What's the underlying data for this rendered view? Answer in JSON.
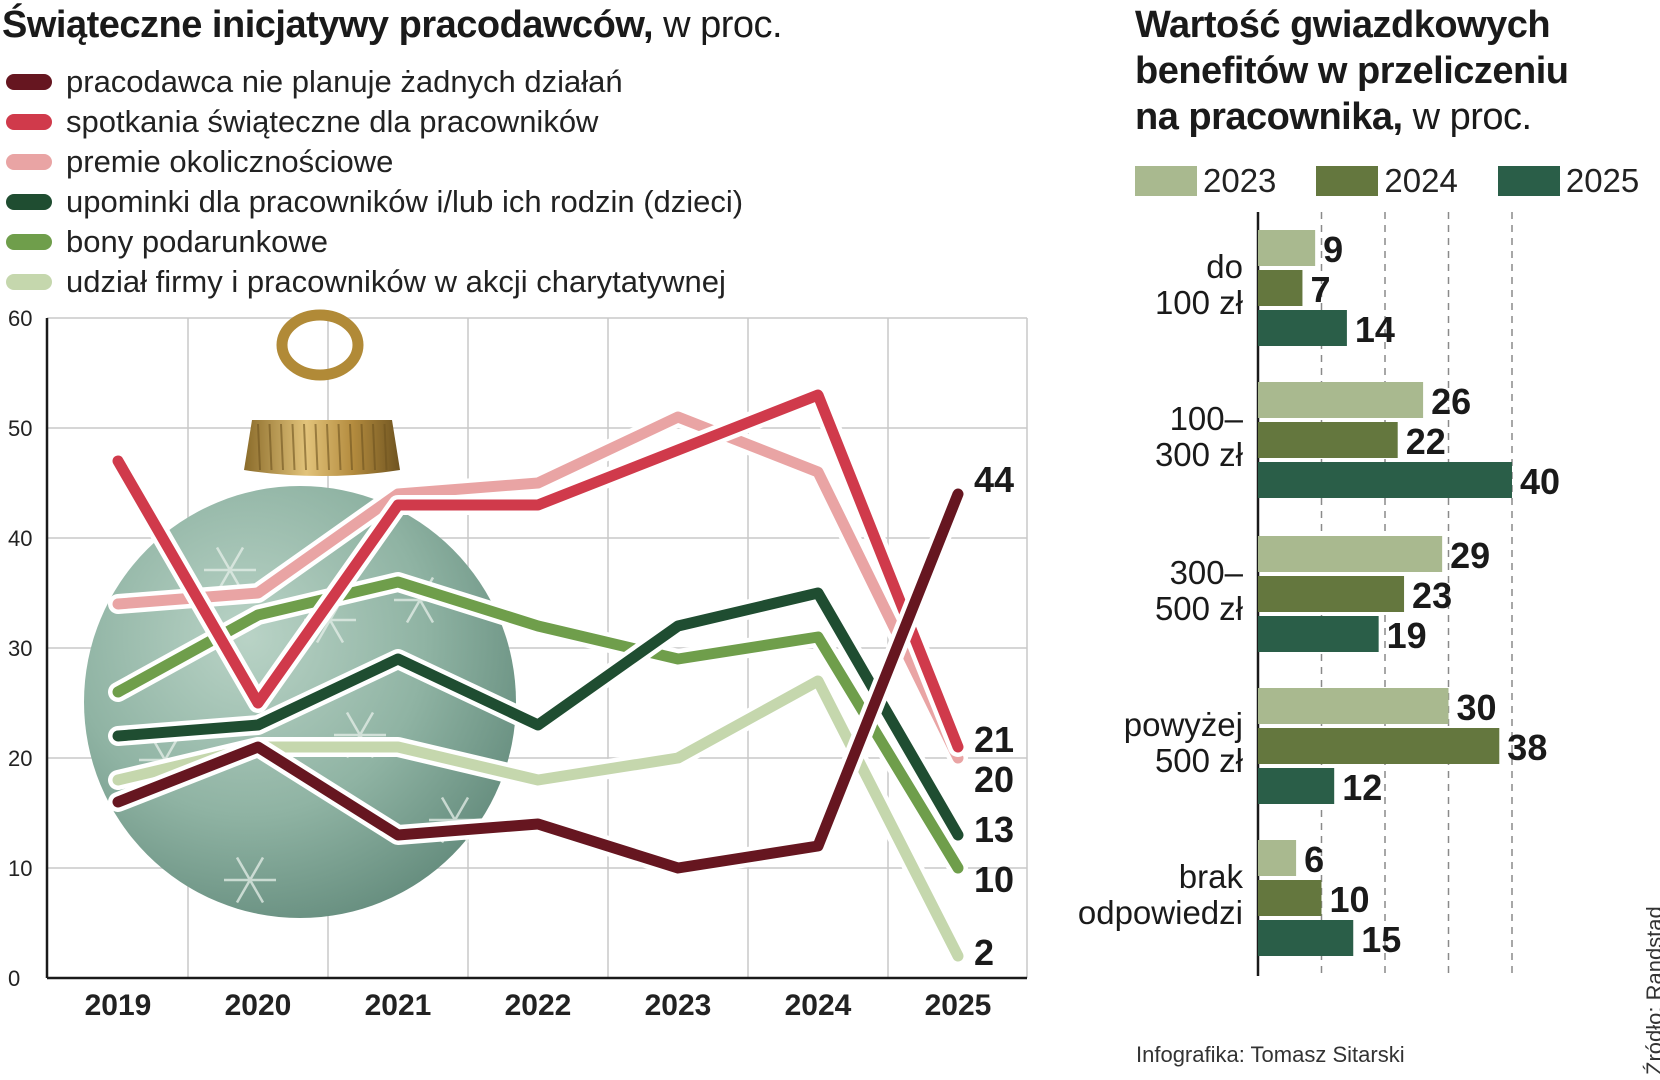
{
  "left_chart": {
    "title_bold": "Świąteczne inicjatywy pracodawców,",
    "title_unit": " w proc.",
    "legend": [
      {
        "label": "pracodawca nie planuje żadnych działań",
        "color": "#661620"
      },
      {
        "label": "spotkania świąteczne dla pracowników",
        "color": "#d03a4b"
      },
      {
        "label": "premie okolicznościowe",
        "color": "#e9a4a4"
      },
      {
        "label": "upominki dla pracowników i/lub ich rodzin (dzieci)",
        "color": "#1f4d31"
      },
      {
        "label": "bony podarunkowe",
        "color": "#6f9e4b"
      },
      {
        "label": "udział firmy i pracowników w akcji charytatywnej",
        "color": "#c5d7ad"
      }
    ]
  },
  "right_chart": {
    "title_bold_lines": [
      "Wartość gwiazdkowych",
      "benefitów w przeliczeniu",
      "na pracownika,"
    ],
    "title_unit": " w proc.",
    "legend": [
      {
        "label": "2023",
        "color": "#a9b98f"
      },
      {
        "label": "2024",
        "color": "#64773e"
      },
      {
        "label": "2025",
        "color": "#2a5e48"
      }
    ]
  },
  "chart_data": [
    {
      "type": "line",
      "title": "Świąteczne inicjatywy pracodawców, w proc.",
      "x": [
        "2019",
        "2020",
        "2021",
        "2022",
        "2023",
        "2024",
        "2025"
      ],
      "ylim": [
        0,
        60
      ],
      "yticks": [
        "0",
        "10",
        "20",
        "30",
        "40",
        "50",
        "60"
      ],
      "grid": true,
      "legend_position": "top",
      "series": [
        {
          "name": "pracodawca nie planuje żadnych działań",
          "color": "#661620",
          "values": [
            16,
            21,
            13,
            14,
            10,
            12,
            44
          ],
          "end_label": "44"
        },
        {
          "name": "spotkania świąteczne dla pracowników",
          "color": "#d03a4b",
          "values": [
            47,
            25,
            43,
            43,
            48,
            53,
            21
          ],
          "end_label": "21"
        },
        {
          "name": "premie okolicznościowe",
          "color": "#e9a4a4",
          "values": [
            34,
            35,
            44,
            45,
            51,
            46,
            20
          ],
          "end_label": "20"
        },
        {
          "name": "upominki dla pracowników i/lub ich rodzin (dzieci)",
          "color": "#1f4d31",
          "values": [
            22,
            23,
            29,
            23,
            32,
            35,
            13
          ],
          "end_label": "13"
        },
        {
          "name": "bony podarunkowe",
          "color": "#6f9e4b",
          "values": [
            26,
            33,
            36,
            32,
            29,
            31,
            10
          ],
          "end_label": "10"
        },
        {
          "name": "udział firmy i pracowników w akcji charytatywnej",
          "color": "#c5d7ad",
          "values": [
            18,
            21,
            21,
            18,
            20,
            27,
            2
          ],
          "end_label": "2"
        }
      ]
    },
    {
      "type": "bar",
      "orientation": "horizontal",
      "title": "Wartość gwiazdkowych benefitów w przeliczeniu na pracownika, w proc.",
      "categories": [
        [
          "do",
          "100 zł"
        ],
        [
          "100–",
          "300 zł"
        ],
        [
          "300–",
          "500 zł"
        ],
        [
          "powyżej",
          "500 zł"
        ],
        [
          "brak",
          "odpowiedzi"
        ]
      ],
      "xlim": [
        0,
        40
      ],
      "grid": true,
      "legend_position": "top",
      "series": [
        {
          "name": "2023",
          "color": "#a9b98f",
          "values": [
            9,
            26,
            29,
            30,
            6
          ]
        },
        {
          "name": "2024",
          "color": "#64773e",
          "values": [
            7,
            22,
            23,
            38,
            10
          ]
        },
        {
          "name": "2025",
          "color": "#2a5e48",
          "values": [
            14,
            40,
            19,
            12,
            15
          ]
        }
      ]
    }
  ],
  "credit": "Infografika: Tomasz Sitarski",
  "source": "Źródło: Randstad"
}
